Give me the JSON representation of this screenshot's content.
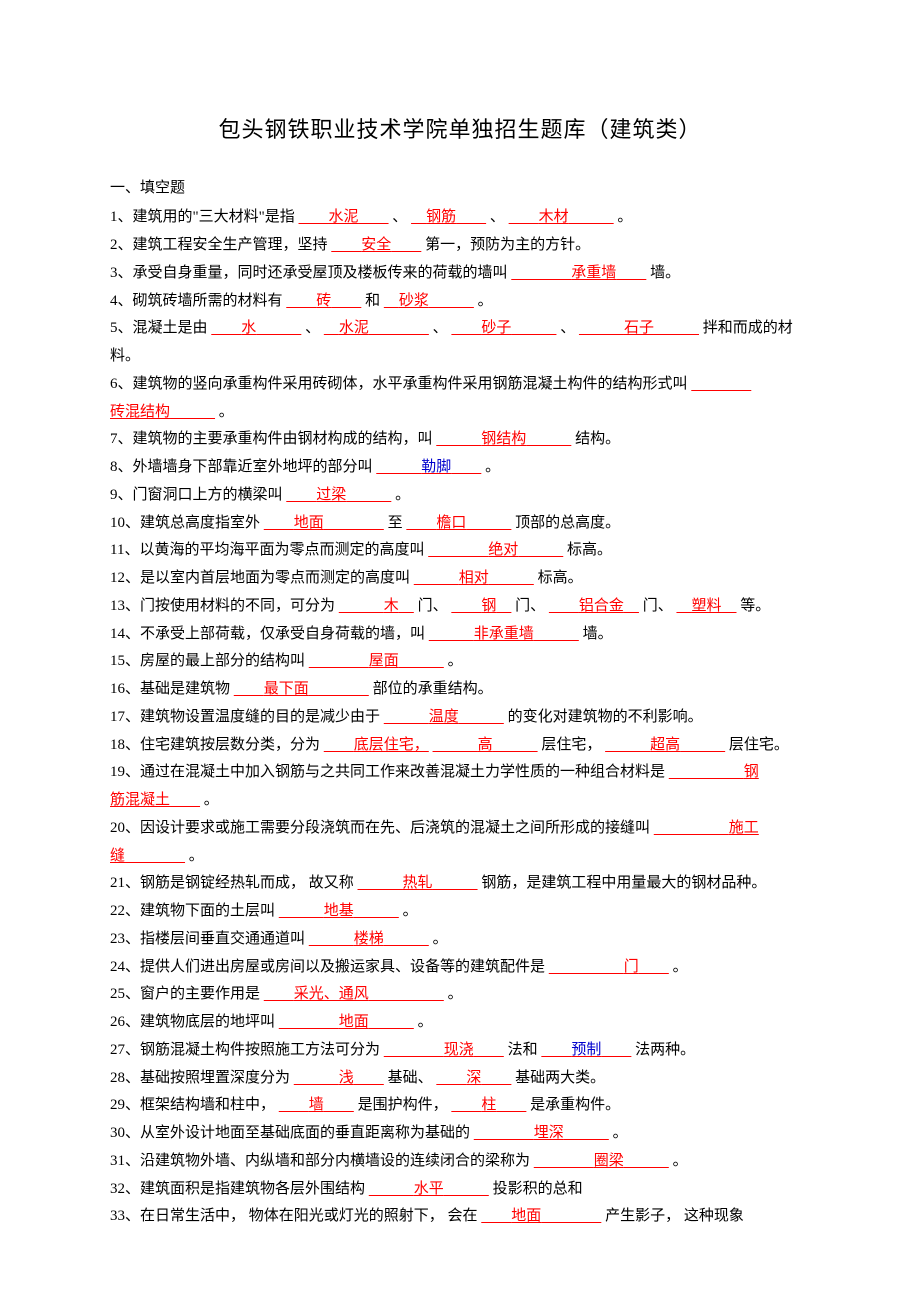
{
  "title": "包头钢铁职业技术学院单独招生题库（建筑类）",
  "section1": "一、填空题",
  "q1": {
    "pre": "1、建筑用的\"三大材料\"是指",
    "a1": "水泥",
    "sep1": "、",
    "a2": "钢筋",
    "sep2": "、",
    "a3": "木材",
    "post": "。"
  },
  "q2": {
    "pre": "2、建筑工程安全生产管理，坚持",
    "a1": "安全",
    "post": "第一，预防为主的方针。"
  },
  "q3": {
    "pre": "3、承受自身重量，同时还承受屋顶及楼板传来的荷载的墙叫",
    "a1": "承重墙",
    "post": "墙。"
  },
  "q4": {
    "pre": "4、砌筑砖墙所需的材料有",
    "a1": "砖",
    "mid": "和",
    "a2": "砂浆",
    "post": "。"
  },
  "q5": {
    "pre": "5、混凝土是由",
    "a1": "水",
    "sep1": "、",
    "a2": "水泥",
    "sep2": "、",
    "a3": "砂子",
    "sep3": "、",
    "a4": "石子",
    "post": "拌和而成的材料。"
  },
  "q6": {
    "pre": "6、建筑物的竖向承重构件采用砖砌体，水平承重构件采用钢筋混凝土构件的结构形式叫",
    "a1": "砖混结构",
    "post": "。"
  },
  "q7": {
    "pre": "7、建筑物的主要承重构件由钢材构成的结构，叫",
    "a1": "钢结构",
    "post": "结构。"
  },
  "q8": {
    "pre": "8、外墙墙身下部靠近室外地坪的部分叫",
    "a1": "勒脚",
    "post": "。"
  },
  "q9": {
    "pre": "9、门窗洞口上方的横梁叫",
    "a1": "过梁",
    "post": "。"
  },
  "q10": {
    "pre": "10、建筑总高度指室外",
    "a1": "地面",
    "mid": "至",
    "a2": "檐口",
    "post": "顶部的总高度。"
  },
  "q11": {
    "pre": "11、以黄海的平均海平面为零点而测定的高度叫",
    "a1": "绝对",
    "post": "标高。"
  },
  "q12": {
    "pre": "12、是以室内首层地面为零点而测定的高度叫",
    "a1": "相对",
    "post": "标高。"
  },
  "q13": {
    "pre": "13、门按使用材料的不同，可分为",
    "a1": "木",
    "m1": "门、",
    "a2": "钢",
    "m2": "门、",
    "a3": "铝合金",
    "m3": "门、",
    "a4": "塑料",
    "post": "等。"
  },
  "q14": {
    "pre": "14、不承受上部荷载，仅承受自身荷载的墙，叫",
    "a1": "非承重墙",
    "post": "墙。"
  },
  "q15": {
    "pre": "15、房屋的最上部分的结构叫",
    "a1": "屋面",
    "post": "。"
  },
  "q16": {
    "pre": "16、基础是建筑物",
    "a1": "最下面",
    "post": "部位的承重结构。"
  },
  "q17": {
    "pre": "17、建筑物设置温度缝的目的是减少由于",
    "a1": "温度",
    "post": "的变化对建筑物的不利影响。"
  },
  "q18": {
    "pre": "18、住宅建筑按层数分类，分为",
    "a1": "底层住宅，",
    "a2": "高",
    "m2": "层住宅，",
    "a3": "超高",
    "post": "层住宅。"
  },
  "q19": {
    "pre": "19、通过在混凝土中加入钢筋与之共同工作来改善混凝土力学性质的一种组合材料是",
    "a1": "钢筋混凝土",
    "post": "。"
  },
  "q20": {
    "pre": "20、因设计要求或施工需要分段浇筑而在先、后浇筑的混凝土之间所形成的接缝叫",
    "a1": "施工缝",
    "post": "。"
  },
  "q21": {
    "pre": "21、钢筋是钢锭经热轧而成，  故又称",
    "a1": "热轧",
    "post": "钢筋，是建筑工程中用量最大的钢材品种。"
  },
  "q22": {
    "pre": "22、建筑物下面的土层叫",
    "a1": "地基",
    "post": "。"
  },
  "q23": {
    "pre": "23、指楼层间垂直交通通道叫",
    "a1": "楼梯",
    "post": "。"
  },
  "q24": {
    "pre": "24、提供人们进出房屋或房间以及搬运家具、设备等的建筑配件是",
    "a1": "门",
    "post": "。"
  },
  "q25": {
    "pre": "25、窗户的主要作用是",
    "a1": "采光、通风",
    "post": "。"
  },
  "q26": {
    "pre": "26、建筑物底层的地坪叫",
    "a1": "地面",
    "post": "。"
  },
  "q27": {
    "pre": "27、钢筋混凝土构件按照施工方法可分为",
    "a1": "现浇",
    "mid": "法和",
    "a2": "预制",
    "post": "法两种。"
  },
  "q28": {
    "pre": "28、基础按照埋置深度分为",
    "a1": "浅",
    "mid": "基础、",
    "a2": "深",
    "post": "基础两大类。"
  },
  "q29": {
    "pre": "29、框架结构墙和柱中，",
    "a1": "墙",
    "mid": "是围护构件，",
    "a2": "柱",
    "post": "是承重构件。"
  },
  "q30": {
    "pre": "30、从室外设计地面至基础底面的垂直距离称为基础的",
    "a1": "埋深",
    "post": "。"
  },
  "q31": {
    "pre": "31、沿建筑物外墙、内纵墙和部分内横墙设的连续闭合的梁称为",
    "a1": "圈梁",
    "post": "。"
  },
  "q32": {
    "pre": "32、建筑面积是指建筑物各层外围结构",
    "a1": "水平",
    "post": "投影积的总和"
  },
  "q33": {
    "pre": "33、在日常生活中，  物体在阳光或灯光的照射下，   会在",
    "a1": "地面",
    "post": "产生影子，  这种现象"
  }
}
